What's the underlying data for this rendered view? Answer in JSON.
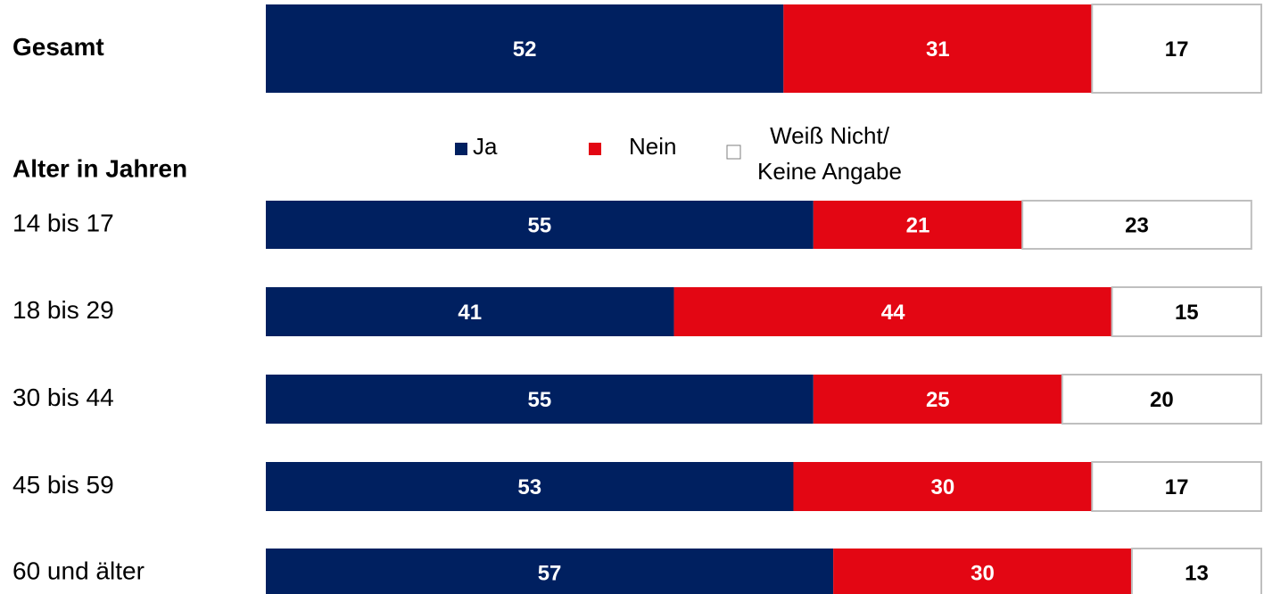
{
  "chart_data": {
    "type": "stacked-bar-horizontal",
    "group_label": "Alter in Jahren",
    "categories": [
      "Gesamt",
      "14 bis 17",
      "18 bis 29",
      "30 bis 44",
      "45 bis 59",
      "60 und älter"
    ],
    "series": [
      {
        "name": "Ja",
        "color": "#002060",
        "values": [
          52,
          55,
          41,
          55,
          53,
          57
        ]
      },
      {
        "name": "Nein",
        "color": "#e30613",
        "values": [
          31,
          21,
          44,
          25,
          30,
          30
        ]
      },
      {
        "name": "Weiß Nicht/ Keine Angabe",
        "color": "#ffffff",
        "values": [
          17,
          23,
          15,
          20,
          17,
          13
        ]
      }
    ],
    "xlim": [
      0,
      100
    ]
  }
}
